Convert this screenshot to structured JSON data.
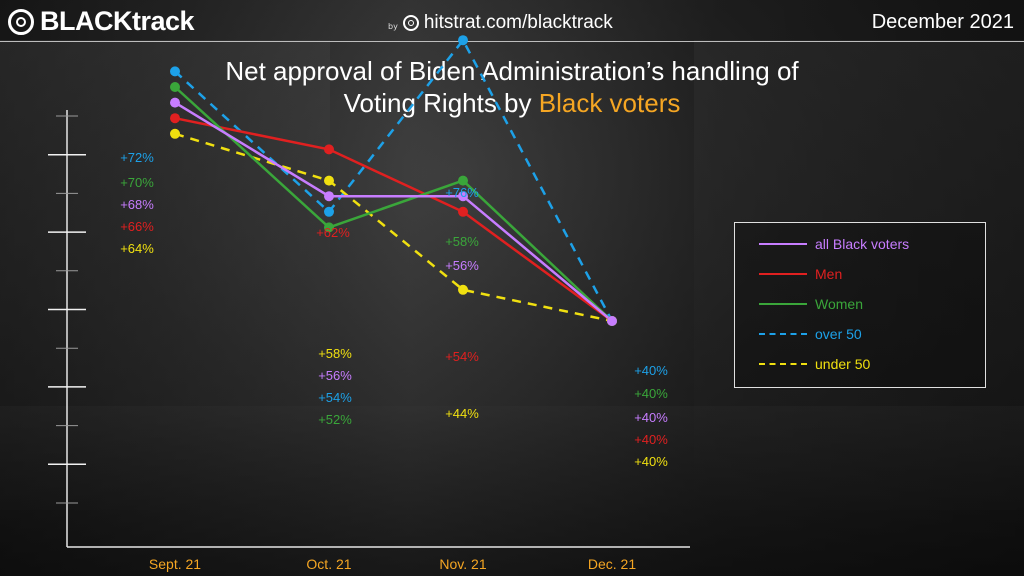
{
  "header": {
    "brand": "BLACKtrack",
    "by": "by",
    "site": "hitstrat.com/blacktrack",
    "date": "December 2021"
  },
  "title": {
    "line1": "Net approval of Biden Administration’s handling of",
    "line2_prefix": "Voting Rights by ",
    "line2_accent": "Black voters"
  },
  "colors": {
    "accent": "#f5a623",
    "all_black_voters": "#c77dff",
    "men": "#e02020",
    "women": "#3aa63a",
    "over_50": "#1da1e8",
    "under_50": "#f0e010"
  },
  "legend": [
    {
      "label": "all Black voters",
      "color": "#c77dff",
      "dashed": false
    },
    {
      "label": "Men",
      "color": "#e02020",
      "dashed": false
    },
    {
      "label": "Women",
      "color": "#3aa63a",
      "dashed": false
    },
    {
      "label": "over 50",
      "color": "#1da1e8",
      "dashed": true
    },
    {
      "label": "under 50",
      "color": "#f0e010",
      "dashed": true
    }
  ],
  "chart_data": {
    "type": "line",
    "title": "Net approval of Biden Administration’s handling of Voting Rights by Black voters",
    "categories": [
      "Sept. 21",
      "Oct. 21",
      "Nov. 21",
      "Dec. 21"
    ],
    "series": [
      {
        "name": "all Black voters",
        "values": [
          68,
          56,
          56,
          40
        ],
        "labels": [
          "+68%",
          "+56%",
          "+56%",
          "+40%"
        ],
        "color": "#c77dff",
        "dashed": false
      },
      {
        "name": "Men",
        "values": [
          66,
          62,
          54,
          40
        ],
        "labels": [
          "+66%",
          "+62%",
          "+54%",
          "+40%"
        ],
        "color": "#e02020",
        "dashed": false
      },
      {
        "name": "Women",
        "values": [
          70,
          52,
          58,
          40
        ],
        "labels": [
          "+70%",
          "+52%",
          "+58%",
          "+40%"
        ],
        "color": "#3aa63a",
        "dashed": false
      },
      {
        "name": "over 50",
        "values": [
          72,
          54,
          76,
          40
        ],
        "labels": [
          "+72%",
          "+54%",
          "+76%",
          "+40%"
        ],
        "color": "#1da1e8",
        "dashed": true
      },
      {
        "name": "under 50",
        "values": [
          64,
          58,
          44,
          40
        ],
        "labels": [
          "+64%",
          "+58%",
          "+44%",
          "+40%"
        ],
        "color": "#f0e010",
        "dashed": true
      }
    ],
    "grid": false,
    "legend_position": "right"
  }
}
